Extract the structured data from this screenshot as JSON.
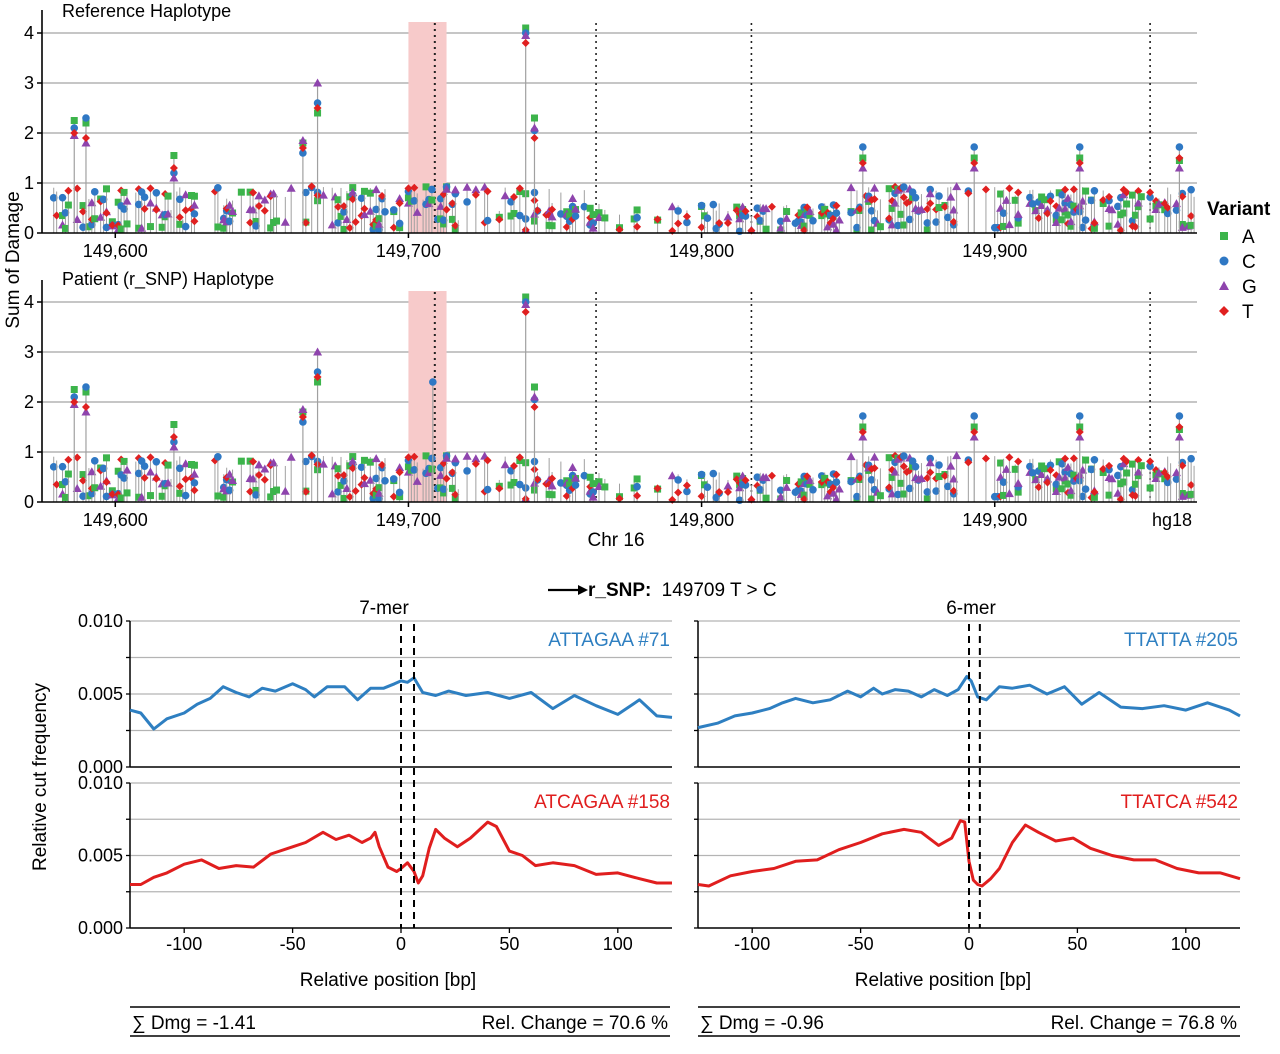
{
  "colors": {
    "A": "#3cb44b",
    "C": "#2f78c4",
    "G": "#8e44ad",
    "T": "#e02020",
    "blue": "#2e7fc1",
    "red": "#e01e1e",
    "highlight": "#f7caca",
    "grid": "#b4b4b4",
    "stem": "#a0a0a0"
  },
  "icons": {
    "A": "square-marker",
    "C": "circle-marker",
    "G": "triangle-marker",
    "T": "diamond-marker",
    "arrow": "right-arrow-icon"
  },
  "chart_data": [
    {
      "type": "scatter",
      "title": "Reference Haplotype",
      "ylabel": "Sum of Damage",
      "xlim": [
        149575,
        149969
      ],
      "ylim": [
        0,
        4.2
      ],
      "yticks": [
        "0",
        "1",
        "2",
        "3",
        "4"
      ],
      "xticks": [
        "149,600",
        "149,700",
        "149,800",
        "149,900"
      ],
      "grid": true,
      "highlight": [
        149700,
        149713
      ],
      "snp_line": 149709,
      "dotted_lines": [
        149764,
        149817,
        149953
      ],
      "legend": {
        "title": "Variant",
        "entries": [
          "A",
          "C",
          "G",
          "T"
        ],
        "placement": "right"
      },
      "peaks": [
        {
          "x": 149586,
          "values": {
            "A": 2.25,
            "C": 2.1,
            "G": 1.95,
            "T": 2.0
          }
        },
        {
          "x": 149590,
          "values": {
            "A": 2.2,
            "C": 2.3,
            "G": 1.8,
            "T": 1.9
          }
        },
        {
          "x": 149620,
          "values": {
            "A": 1.55,
            "C": 1.2,
            "G": 1.1,
            "T": 1.3
          }
        },
        {
          "x": 149664,
          "values": {
            "A": 1.8,
            "C": 1.6,
            "G": 1.85,
            "T": 1.7
          }
        },
        {
          "x": 149669,
          "values": {
            "A": 2.4,
            "C": 2.6,
            "G": 3.0,
            "T": 2.5
          }
        },
        {
          "x": 149740,
          "values": {
            "A": 4.1,
            "C": 4.0,
            "G": 3.95,
            "T": 3.8
          }
        },
        {
          "x": 149743,
          "values": {
            "A": 2.3,
            "C": 2.05,
            "G": 2.1,
            "T": 1.9
          }
        },
        {
          "x": 149855,
          "values": {
            "A": 1.5,
            "C": 1.72,
            "G": 1.3,
            "T": 1.4
          }
        },
        {
          "x": 149893,
          "values": {
            "A": 1.5,
            "C": 1.72,
            "G": 1.3,
            "T": 1.4
          }
        },
        {
          "x": 149929,
          "values": {
            "A": 1.5,
            "C": 1.72,
            "G": 1.3,
            "T": 1.4
          }
        },
        {
          "x": 149963,
          "values": {
            "A": 1.45,
            "C": 1.72,
            "G": 1.3,
            "T": 1.5
          }
        }
      ]
    },
    {
      "type": "scatter",
      "title": "Patient (r_SNP) Haplotype",
      "ylabel": "Sum of Damage",
      "xlabel": "Chr 16",
      "xlim": [
        149575,
        149969
      ],
      "ylim": [
        0,
        4.2
      ],
      "yticks": [
        "0",
        "1",
        "2",
        "3",
        "4"
      ],
      "xticks": [
        "149,600",
        "149,700",
        "149,800",
        "149,900",
        "hg18"
      ],
      "grid": true,
      "highlight": [
        149700,
        149713
      ],
      "snp_line": 149709,
      "snp_peak": {
        "x": 149709,
        "C": 2.4
      },
      "dotted_lines": [
        149764,
        149817,
        149953
      ],
      "peaks": [
        {
          "x": 149586,
          "values": {
            "A": 2.25,
            "C": 2.1,
            "G": 1.95,
            "T": 2.0
          }
        },
        {
          "x": 149590,
          "values": {
            "A": 2.2,
            "C": 2.3,
            "G": 1.8,
            "T": 1.9
          }
        },
        {
          "x": 149620,
          "values": {
            "A": 1.55,
            "C": 1.2,
            "G": 1.1,
            "T": 1.3
          }
        },
        {
          "x": 149664,
          "values": {
            "A": 1.8,
            "C": 1.6,
            "G": 1.85,
            "T": 1.7
          }
        },
        {
          "x": 149669,
          "values": {
            "A": 2.4,
            "C": 2.6,
            "G": 3.0,
            "T": 2.5
          }
        },
        {
          "x": 149740,
          "values": {
            "A": 4.1,
            "C": 4.0,
            "G": 3.95,
            "T": 3.8
          }
        },
        {
          "x": 149743,
          "values": {
            "A": 2.3,
            "C": 2.05,
            "G": 2.1,
            "T": 1.9
          }
        },
        {
          "x": 149855,
          "values": {
            "A": 1.5,
            "C": 1.72,
            "G": 1.3,
            "T": 1.4
          }
        },
        {
          "x": 149893,
          "values": {
            "A": 1.5,
            "C": 1.72,
            "G": 1.3,
            "T": 1.4
          }
        },
        {
          "x": 149929,
          "values": {
            "A": 1.5,
            "C": 1.72,
            "G": 1.3,
            "T": 1.4
          }
        },
        {
          "x": 149963,
          "values": {
            "A": 1.45,
            "C": 1.72,
            "G": 1.3,
            "T": 1.5
          }
        }
      ]
    },
    {
      "type": "line",
      "ylabel": "Relative cut frequency",
      "xlabel": "Relative position [bp]",
      "xlim": [
        -125,
        125
      ],
      "ylim": [
        0,
        0.01
      ],
      "yticks": [
        "0.000",
        "0.005",
        "0.010"
      ],
      "xticks": [
        "-100",
        "-50",
        "0",
        "50",
        "100"
      ],
      "vlines": [
        0,
        6
      ],
      "header": "7-mer",
      "series": [
        {
          "name": "ATTAGAA #71",
          "color": "blue",
          "x": [
            -125,
            -120,
            -114,
            -108,
            -100,
            -94,
            -88,
            -82,
            -76,
            -70,
            -64,
            -58,
            -50,
            -44,
            -40,
            -34,
            -26,
            -20,
            -14,
            -8,
            -3,
            0,
            3,
            6,
            10,
            16,
            22,
            30,
            40,
            50,
            60,
            70,
            80,
            90,
            100,
            110,
            118,
            125
          ],
          "y": [
            0.0039,
            0.0037,
            0.0026,
            0.0033,
            0.0037,
            0.0043,
            0.0047,
            0.0055,
            0.0051,
            0.0048,
            0.0054,
            0.0052,
            0.0057,
            0.0053,
            0.0048,
            0.0055,
            0.0055,
            0.0046,
            0.0054,
            0.0054,
            0.0057,
            0.0059,
            0.0058,
            0.0061,
            0.0051,
            0.0049,
            0.0052,
            0.0049,
            0.0051,
            0.0047,
            0.0051,
            0.004,
            0.0049,
            0.0042,
            0.0036,
            0.0046,
            0.0035,
            0.0034
          ]
        },
        {
          "name": "ATCAGAA #158",
          "color": "red",
          "x": [
            -125,
            -120,
            -114,
            -108,
            -100,
            -92,
            -84,
            -76,
            -68,
            -60,
            -50,
            -44,
            -36,
            -30,
            -24,
            -18,
            -14,
            -12,
            -10,
            -6,
            -2,
            0,
            3,
            6,
            8,
            10,
            13,
            16,
            20,
            26,
            32,
            40,
            44,
            50,
            56,
            62,
            70,
            80,
            90,
            100,
            110,
            118,
            125
          ],
          "y": [
            0.003,
            0.003,
            0.0035,
            0.0038,
            0.0044,
            0.0047,
            0.0041,
            0.0043,
            0.0042,
            0.0051,
            0.0056,
            0.0059,
            0.0066,
            0.0061,
            0.0064,
            0.0059,
            0.0062,
            0.0066,
            0.0056,
            0.0042,
            0.0039,
            0.0041,
            0.0045,
            0.0039,
            0.0031,
            0.0036,
            0.0055,
            0.0068,
            0.0062,
            0.0056,
            0.0062,
            0.0073,
            0.007,
            0.0053,
            0.005,
            0.0043,
            0.0045,
            0.0043,
            0.0037,
            0.0038,
            0.0034,
            0.0031,
            0.0031
          ]
        }
      ]
    },
    {
      "type": "line",
      "ylabel": "Relative cut frequency",
      "xlabel": "Relative position [bp]",
      "xlim": [
        -125,
        125
      ],
      "ylim": [
        0,
        0.01
      ],
      "yticks": [
        "0.000",
        "0.005",
        "0.010"
      ],
      "xticks": [
        "-100",
        "-50",
        "0",
        "50",
        "100"
      ],
      "vlines": [
        0,
        5
      ],
      "header": "6-mer",
      "series": [
        {
          "name": "TTATTA #205",
          "color": "blue",
          "x": [
            -125,
            -116,
            -108,
            -100,
            -92,
            -86,
            -80,
            -72,
            -64,
            -56,
            -50,
            -44,
            -40,
            -34,
            -28,
            -22,
            -16,
            -10,
            -5,
            -1,
            1,
            4,
            8,
            14,
            20,
            28,
            36,
            44,
            52,
            60,
            70,
            80,
            90,
            100,
            110,
            120,
            125
          ],
          "y": [
            0.0027,
            0.003,
            0.0035,
            0.0037,
            0.004,
            0.0044,
            0.0047,
            0.0044,
            0.0046,
            0.0052,
            0.0048,
            0.0054,
            0.005,
            0.0053,
            0.0052,
            0.0048,
            0.0053,
            0.0049,
            0.0053,
            0.0062,
            0.0059,
            0.0048,
            0.0046,
            0.0055,
            0.0054,
            0.0056,
            0.005,
            0.0055,
            0.0043,
            0.0051,
            0.0041,
            0.004,
            0.0042,
            0.0039,
            0.0044,
            0.0039,
            0.0035
          ]
        },
        {
          "name": "TTATCA #542",
          "color": "red",
          "x": [
            -125,
            -120,
            -110,
            -100,
            -90,
            -80,
            -70,
            -60,
            -50,
            -40,
            -30,
            -22,
            -14,
            -8,
            -4,
            -2,
            0,
            2,
            4,
            6,
            10,
            14,
            20,
            26,
            32,
            40,
            48,
            56,
            66,
            76,
            86,
            96,
            106,
            116,
            125
          ],
          "y": [
            0.003,
            0.0029,
            0.0036,
            0.0039,
            0.0041,
            0.0046,
            0.0047,
            0.0054,
            0.0059,
            0.0065,
            0.0068,
            0.0066,
            0.0057,
            0.0062,
            0.0074,
            0.0073,
            0.0046,
            0.0033,
            0.003,
            0.0029,
            0.0034,
            0.0041,
            0.0059,
            0.0071,
            0.0066,
            0.006,
            0.0062,
            0.0055,
            0.005,
            0.0047,
            0.0047,
            0.0041,
            0.0038,
            0.0038,
            0.0034
          ]
        }
      ]
    }
  ],
  "top": {
    "ref_title": "Reference Haplotype",
    "pat_title": "Patient (r_SNP) Haplotype",
    "ylabel": "Sum of Damage",
    "xlabel": "Chr 16",
    "build": "hg18",
    "legend_title": "Variant",
    "legend_entries": [
      "A",
      "C",
      "G",
      "T"
    ]
  },
  "snp": {
    "label": "r_SNP:",
    "value": "149709 T > C"
  },
  "bottom": {
    "ylabel": "Relative cut frequency",
    "left": {
      "header": "7-mer",
      "top_label": "ATTAGAA #71",
      "bottom_label": "ATCAGAA #158",
      "xlabel": "Relative position [bp]",
      "dmg": "∑ Dmg = -1.41",
      "rel": "Rel. Change = 70.6 %"
    },
    "right": {
      "header": "6-mer",
      "top_label": "TTATTA #205",
      "bottom_label": "TTATCA #542",
      "xlabel": "Relative position [bp]",
      "dmg": "∑ Dmg = -0.96",
      "rel": "Rel. Change = 76.8 %"
    }
  }
}
